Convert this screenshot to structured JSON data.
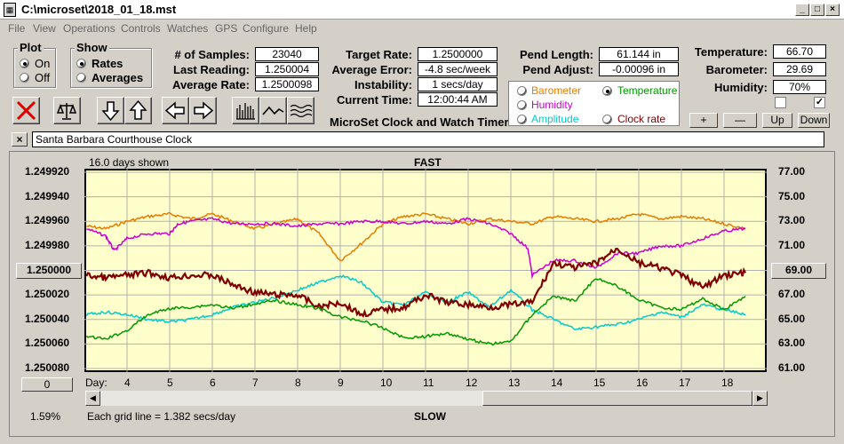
{
  "window": {
    "title": "C:\\microset\\2018_01_18.mst"
  },
  "menu": [
    "File",
    "View",
    "Operations",
    "Controls",
    "Watches",
    "GPS",
    "Configure",
    "Help"
  ],
  "plot_group": {
    "title": "Plot",
    "options": [
      "On",
      "Off"
    ],
    "selected": "On"
  },
  "show_group": {
    "title": "Show",
    "options": [
      "Rates",
      "Averages"
    ],
    "selected": "Rates"
  },
  "stats": {
    "samples_label": "# of Samples:",
    "samples": "23040",
    "last_reading_label": "Last Reading:",
    "last_reading": "1.250004",
    "average_rate_label": "Average Rate:",
    "average_rate": "1.2500098",
    "target_rate_label": "Target Rate:",
    "target_rate": "1.2500000",
    "average_error_label": "Average Error:",
    "average_error": "-4.8 sec/week",
    "instability_label": "Instability:",
    "instability": "1 secs/day",
    "current_time_label": "Current Time:",
    "current_time": "12:00:44 AM",
    "pend_length_label": "Pend Length:",
    "pend_length": "61.144 in",
    "pend_adjust_label": "Pend Adjust:",
    "pend_adjust": "-0.00096 in",
    "temperature_label": "Temperature:",
    "temperature": "66.70",
    "barometer_label": "Barometer:",
    "barometer": "29.69",
    "humidity_label": "Humidity:",
    "humidity": "70%"
  },
  "app_name": "MicroSet Clock and Watch Timer",
  "sensor_options": [
    {
      "label": "Barometer",
      "color": "#e87c00",
      "selected": false
    },
    {
      "label": "Temperature",
      "color": "#009900",
      "selected": true
    },
    {
      "label": "Humidity",
      "color": "#cc00cc",
      "selected": false
    },
    {
      "label": "Amplitude",
      "color": "#00cccc",
      "selected": false
    },
    {
      "label": "Clock rate",
      "color": "#800000",
      "selected": false
    }
  ],
  "adjust_buttons": [
    "+",
    "—",
    "Up",
    "Down"
  ],
  "clock_name": "Santa Barbara Courthouse Clock",
  "chart_data": {
    "type": "line",
    "top_label": "FAST",
    "bottom_label": "SLOW",
    "days_shown": "16.0 days shown",
    "grid_note": "Each grid line = 1.382 secs/day",
    "left_axis": [
      "1.249920",
      "1.249940",
      "1.249960",
      "1.249980",
      "1.250000",
      "1.250020",
      "1.250040",
      "1.250060",
      "1.250080"
    ],
    "right_axis": [
      "77.00",
      "75.00",
      "73.00",
      "71.00",
      "69.00",
      "67.00",
      "65.00",
      "63.00",
      "61.00"
    ],
    "center_left_value": "1.250000",
    "center_right_value": "69.00",
    "x_label": "Day:",
    "x_ticks": [
      "4",
      "5",
      "6",
      "7",
      "8",
      "9",
      "10",
      "11",
      "12",
      "13",
      "14",
      "15",
      "16",
      "17",
      "18"
    ],
    "x_range": [
      3.0,
      19.0
    ],
    "ylim_rate": [
      1.24992,
      1.25008
    ],
    "ylim_temp": [
      61,
      77
    ],
    "series": [
      {
        "name": "Barometer",
        "color": "#e87c00",
        "points": [
          [
            3.05,
            1.249964
          ],
          [
            3.5,
            1.249966
          ],
          [
            4,
            1.24996
          ],
          [
            4.5,
            1.249956
          ],
          [
            5,
            1.249954
          ],
          [
            5.5,
            1.249958
          ],
          [
            6,
            1.249954
          ],
          [
            6.5,
            1.24996
          ],
          [
            7,
            1.249966
          ],
          [
            7.5,
            1.249962
          ],
          [
            8,
            1.249958
          ],
          [
            8.5,
            1.24997
          ],
          [
            9,
            1.249992
          ],
          [
            9.5,
            1.249978
          ],
          [
            10,
            1.249962
          ],
          [
            10.5,
            1.249956
          ],
          [
            11,
            1.249954
          ],
          [
            11.5,
            1.249958
          ],
          [
            12,
            1.249962
          ],
          [
            12.5,
            1.249958
          ],
          [
            13,
            1.24996
          ],
          [
            13.5,
            1.249962
          ],
          [
            14,
            1.249956
          ],
          [
            14.5,
            1.249958
          ],
          [
            15,
            1.24996
          ],
          [
            15.5,
            1.249958
          ],
          [
            16,
            1.249954
          ],
          [
            16.5,
            1.249958
          ],
          [
            17,
            1.249956
          ],
          [
            17.5,
            1.249958
          ],
          [
            18,
            1.249962
          ],
          [
            18.5,
            1.249966
          ]
        ]
      },
      {
        "name": "Humidity",
        "color": "#cc00cc",
        "points": [
          [
            3.05,
            1.249966
          ],
          [
            3.5,
            1.249972
          ],
          [
            3.7,
            1.249984
          ],
          [
            4,
            1.249974
          ],
          [
            4.5,
            1.24997
          ],
          [
            5,
            1.24997
          ],
          [
            5.2,
            1.249962
          ],
          [
            5.5,
            1.24996
          ],
          [
            6,
            1.249958
          ],
          [
            6.5,
            1.249962
          ],
          [
            7,
            1.249962
          ],
          [
            7.5,
            1.249962
          ],
          [
            8,
            1.249964
          ],
          [
            8.5,
            1.249962
          ],
          [
            9,
            1.249962
          ],
          [
            9.5,
            1.24996
          ],
          [
            10,
            1.24996
          ],
          [
            10.5,
            1.249962
          ],
          [
            11,
            1.24996
          ],
          [
            11.5,
            1.249962
          ],
          [
            12,
            1.249958
          ],
          [
            12.5,
            1.249962
          ],
          [
            13,
            1.24997
          ],
          [
            13.4,
            1.249982
          ],
          [
            13.5,
            1.250004
          ],
          [
            14,
            1.249992
          ],
          [
            14.5,
            1.249992
          ],
          [
            15,
            1.249998
          ],
          [
            15.5,
            1.249986
          ],
          [
            16,
            1.249986
          ],
          [
            16.5,
            1.24998
          ],
          [
            17,
            1.24998
          ],
          [
            17.5,
            1.249974
          ],
          [
            18,
            1.249968
          ],
          [
            18.5,
            1.249966
          ]
        ]
      },
      {
        "name": "Amplitude",
        "color": "#00cccc",
        "points": [
          [
            3.05,
            1.250036
          ],
          [
            3.5,
            1.250034
          ],
          [
            4,
            1.250036
          ],
          [
            4.5,
            1.25004
          ],
          [
            5,
            1.250042
          ],
          [
            5.5,
            1.25004
          ],
          [
            6,
            1.250036
          ],
          [
            6.5,
            1.25003
          ],
          [
            7,
            1.250026
          ],
          [
            7.5,
            1.250022
          ],
          [
            8,
            1.250016
          ],
          [
            8.5,
            1.25001
          ],
          [
            9,
            1.250004
          ],
          [
            9.5,
            1.25001
          ],
          [
            10,
            1.250026
          ],
          [
            10.5,
            1.250028
          ],
          [
            11,
            1.250018
          ],
          [
            11.5,
            1.250026
          ],
          [
            12,
            1.250018
          ],
          [
            12.5,
            1.25003
          ],
          [
            13,
            1.250016
          ],
          [
            13.5,
            1.250032
          ],
          [
            14,
            1.25004
          ],
          [
            14.5,
            1.250048
          ],
          [
            15,
            1.250046
          ],
          [
            15.5,
            1.250044
          ],
          [
            16,
            1.25004
          ],
          [
            16.5,
            1.250034
          ],
          [
            17,
            1.250038
          ],
          [
            17.5,
            1.250028
          ],
          [
            18,
            1.250032
          ],
          [
            18.5,
            1.250036
          ]
        ]
      },
      {
        "name": "Clock rate",
        "color": "#800000",
        "points": [
          [
            3.05,
            1.250004
          ],
          [
            3.5,
            1.250006
          ],
          [
            4,
            1.250004
          ],
          [
            4.5,
            1.250002
          ],
          [
            5,
            1.250006
          ],
          [
            5.5,
            1.250004
          ],
          [
            6,
            1.250004
          ],
          [
            6.5,
            1.250012
          ],
          [
            7,
            1.250018
          ],
          [
            7.5,
            1.25002
          ],
          [
            8,
            1.25002
          ],
          [
            8.5,
            1.25003
          ],
          [
            9,
            1.250026
          ],
          [
            9.5,
            1.250036
          ],
          [
            10,
            1.250032
          ],
          [
            10.5,
            1.25003
          ],
          [
            11,
            1.25002
          ],
          [
            11.5,
            1.250026
          ],
          [
            12,
            1.250028
          ],
          [
            12.5,
            1.25003
          ],
          [
            13,
            1.250028
          ],
          [
            13.5,
            1.250026
          ],
          [
            14,
            1.249994
          ],
          [
            14.5,
            1.249998
          ],
          [
            15,
            1.249994
          ],
          [
            15.5,
            1.249982
          ],
          [
            16,
            1.249994
          ],
          [
            16.5,
            1.249998
          ],
          [
            17,
            1.250004
          ],
          [
            17.5,
            1.250014
          ],
          [
            18,
            1.250004
          ],
          [
            18.5,
            1.250002
          ]
        ]
      },
      {
        "name": "Temperature",
        "color": "#009900",
        "points": [
          [
            3.05,
            63.6
          ],
          [
            3.5,
            63.4
          ],
          [
            4,
            64.1
          ],
          [
            4.5,
            65.4
          ],
          [
            5,
            65.9
          ],
          [
            5.5,
            66.0
          ],
          [
            6,
            66.2
          ],
          [
            6.5,
            65.9
          ],
          [
            7,
            66.3
          ],
          [
            7.5,
            66.5
          ],
          [
            8,
            66.2
          ],
          [
            8.5,
            65.9
          ],
          [
            9,
            65.2
          ],
          [
            9.5,
            64.9
          ],
          [
            10,
            64.3
          ],
          [
            10.5,
            63.5
          ],
          [
            11,
            63.6
          ],
          [
            11.5,
            63.9
          ],
          [
            12,
            63.4
          ],
          [
            12.5,
            63.0
          ],
          [
            13,
            63.2
          ],
          [
            13.5,
            65.4
          ],
          [
            14,
            66.9
          ],
          [
            14.5,
            66.5
          ],
          [
            15,
            68.4
          ],
          [
            15.5,
            67.7
          ],
          [
            16,
            66.6
          ],
          [
            16.5,
            66.0
          ],
          [
            17,
            65.8
          ],
          [
            17.5,
            66.7
          ],
          [
            18,
            65.8
          ],
          [
            18.5,
            66.9
          ]
        ]
      }
    ]
  },
  "bottom_left_value": "0",
  "status_percent": "1.59%"
}
